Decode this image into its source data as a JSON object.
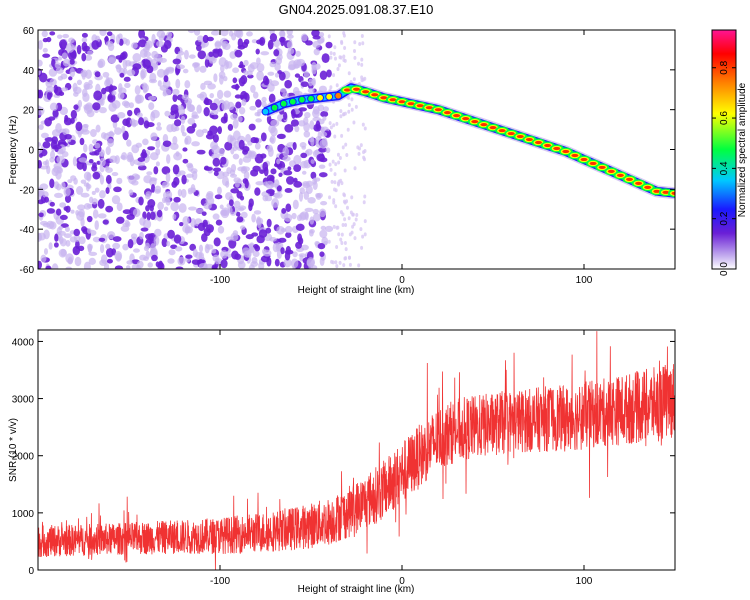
{
  "chart_data": [
    {
      "type": "heatmap",
      "title": "GN04.2025.091.08.37.E10",
      "xlabel": "Height of straight line (km)",
      "ylabel": "Frequency (Hz)",
      "xlim": [
        -200,
        150
      ],
      "ylim": [
        -60,
        60
      ],
      "x_ticks": [
        -100,
        0,
        100
      ],
      "y_ticks": [
        -60,
        -40,
        -20,
        0,
        20,
        40,
        60
      ],
      "grid": false,
      "colorbar": {
        "label": "Normalized spectral amplitude",
        "range": [
          0.0,
          0.95
        ],
        "ticks": [
          0.0,
          0.2,
          0.4,
          0.6,
          0.8
        ],
        "colormap": [
          "#c8b4f0",
          "#6a1fd6",
          "#1a1aff",
          "#00c8ff",
          "#00ff40",
          "#ffff00",
          "#ff8000",
          "#ff0000",
          "#ff1493"
        ]
      },
      "ridge": {
        "x": [
          -75,
          -65,
          -55,
          -45,
          -35,
          -28,
          -20,
          -10,
          0,
          10,
          20,
          30,
          40,
          50,
          60,
          70,
          80,
          90,
          100,
          110,
          120,
          130,
          140,
          150
        ],
        "y": [
          19,
          23,
          25,
          26,
          27,
          31,
          29,
          26,
          24,
          22,
          20,
          17,
          14,
          11,
          8,
          5,
          2,
          -1,
          -5,
          -9,
          -13,
          -17,
          -21,
          -22
        ],
        "amplitude": [
          0.25,
          0.3,
          0.35,
          0.4,
          0.55,
          0.85,
          0.85,
          0.85,
          0.85,
          0.85,
          0.85,
          0.85,
          0.85,
          0.85,
          0.85,
          0.85,
          0.85,
          0.85,
          0.85,
          0.85,
          0.85,
          0.85,
          0.85,
          0.9
        ]
      },
      "noise_region": {
        "x_range": [
          -200,
          -40
        ],
        "amplitude_range": [
          0.05,
          0.15
        ]
      }
    },
    {
      "type": "line",
      "title": "",
      "xlabel": "Height of straight line (km)",
      "ylabel": "SNR (10 * v/v)",
      "xlim": [
        -200,
        150
      ],
      "ylim": [
        0,
        4200
      ],
      "x_ticks": [
        -100,
        0,
        100
      ],
      "y_ticks": [
        0,
        1000,
        2000,
        3000,
        4000
      ],
      "grid": false,
      "series": [
        {
          "color": "#f03232",
          "x": [
            -200,
            -180,
            -160,
            -140,
            -120,
            -100,
            -80,
            -60,
            -50,
            -40,
            -30,
            -20,
            -10,
            0,
            10,
            20,
            30,
            40,
            50,
            60,
            70,
            80,
            90,
            100,
            110,
            120,
            130,
            140,
            150
          ],
          "y": [
            500,
            520,
            540,
            560,
            580,
            600,
            650,
            720,
            780,
            850,
            1000,
            1200,
            1400,
            1700,
            2000,
            2300,
            2450,
            2500,
            2550,
            2600,
            2620,
            2650,
            2650,
            2700,
            2750,
            2800,
            2850,
            2900,
            3000
          ],
          "spread": [
            280,
            280,
            280,
            290,
            300,
            320,
            350,
            380,
            400,
            420,
            450,
            480,
            520,
            550,
            560,
            560,
            560,
            560,
            560,
            560,
            560,
            580,
            580,
            600,
            600,
            620,
            640,
            660,
            680
          ]
        }
      ]
    }
  ]
}
